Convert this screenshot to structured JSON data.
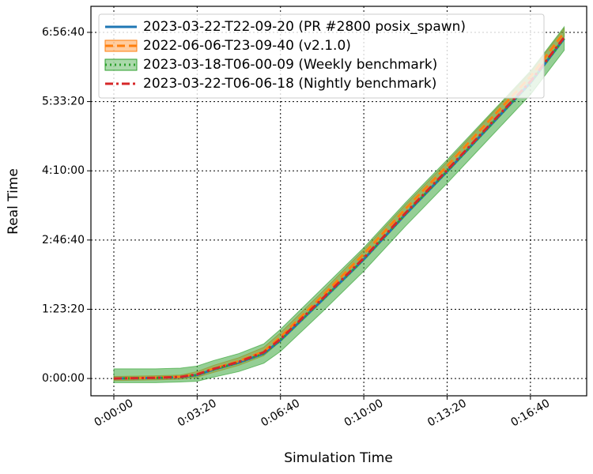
{
  "chart_data": {
    "type": "line",
    "xlabel": "Simulation Time",
    "ylabel": "Real Time",
    "xlim": [
      -55,
      1135
    ],
    "ylim": [
      -1250,
      26880
    ],
    "xticks": [
      {
        "value": 0,
        "label": "0:00:00"
      },
      {
        "value": 200,
        "label": "0:03:20"
      },
      {
        "value": 400,
        "label": "0:06:40"
      },
      {
        "value": 600,
        "label": "0:10:00"
      },
      {
        "value": 800,
        "label": "0:13:20"
      },
      {
        "value": 1000,
        "label": "0:16:40"
      }
    ],
    "yticks": [
      {
        "value": 0,
        "label": "0:00:00"
      },
      {
        "value": 5000,
        "label": "1:23:20"
      },
      {
        "value": 10000,
        "label": "2:46:40"
      },
      {
        "value": 15000,
        "label": "4:10:00"
      },
      {
        "value": 20000,
        "label": "5:33:20"
      },
      {
        "value": 25000,
        "label": "6:56:40"
      }
    ],
    "grid": true,
    "legend": "upper left",
    "x": [
      0,
      100,
      160,
      200,
      240,
      300,
      360,
      400,
      500,
      600,
      700,
      800,
      900,
      1000,
      1081
    ],
    "series": [
      {
        "name": "2023-03-22-T22-09-20 (PR #2800 posix_spawn)",
        "color": "#1f77b4",
        "dash": "solid",
        "values": [
          0,
          40,
          90,
          250,
          650,
          1150,
          1800,
          2750,
          5650,
          8600,
          11850,
          14950,
          18150,
          21350,
          24550
        ]
      },
      {
        "name": "2022-06-06-T23-09-40 (v2.1.0)",
        "color": "#ff7f0e",
        "dash": "dashed",
        "values": [
          0,
          60,
          120,
          320,
          720,
          1250,
          1950,
          3000,
          5950,
          9000,
          12250,
          15350,
          18600,
          21800,
          25000
        ],
        "lower": [
          -150,
          -100,
          -50,
          100,
          450,
          950,
          1650,
          2700,
          5650,
          8700,
          11950,
          15050,
          18300,
          21500,
          24700
        ],
        "upper": [
          150,
          200,
          250,
          500,
          950,
          1500,
          2250,
          3300,
          6250,
          9300,
          12550,
          15650,
          18900,
          22100,
          25300
        ]
      },
      {
        "name": "2023-03-18-T06-00-09 (Weekly benchmark)",
        "color": "#2ca02c",
        "dash": "dotted",
        "values": [
          0,
          40,
          90,
          250,
          650,
          1150,
          1800,
          2750,
          5650,
          8600,
          11850,
          14950,
          18150,
          21350,
          24550
        ],
        "lower": [
          -300,
          -300,
          -250,
          -200,
          100,
          500,
          1100,
          1950,
          4800,
          7750,
          11000,
          14100,
          17300,
          20500,
          23700
        ],
        "upper": [
          700,
          700,
          750,
          900,
          1300,
          1800,
          2500,
          3550,
          6500,
          9450,
          12700,
          15800,
          19000,
          22200,
          25400
        ]
      },
      {
        "name": "2023-03-22-T06-06-18 (Nightly benchmark)",
        "color": "#d62728",
        "dash": "dashdot",
        "values": [
          0,
          50,
          110,
          300,
          700,
          1200,
          1900,
          2850,
          5750,
          8700,
          11950,
          15050,
          18250,
          21450,
          24650
        ]
      }
    ]
  }
}
